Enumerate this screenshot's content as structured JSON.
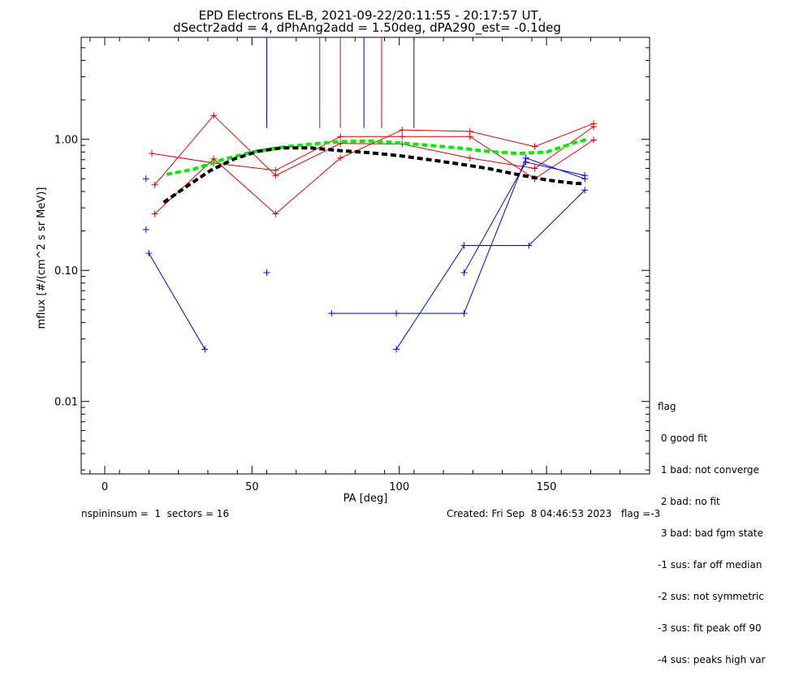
{
  "chart_data": {
    "type": "line",
    "title_line1": "EPD Electrons EL-B, 2021-09-22/20:11:55 - 20:17:57 UT,",
    "title_line2": "dSectr2add = 4, dPhAng2add = 1.50deg, dPA290_est=  -0.1deg",
    "xlabel": "PA [deg]",
    "ylabel": "mflux [#/(cm^2 s sr MeV)]",
    "x_ticks": [
      {
        "value": 0,
        "label": "0"
      },
      {
        "value": 50,
        "label": "50"
      },
      {
        "value": 100,
        "label": "100"
      },
      {
        "value": 150,
        "label": "150"
      }
    ],
    "y_ticks": [
      {
        "value": 0.01,
        "label": "0.01"
      },
      {
        "value": 0.1,
        "label": "0.10"
      },
      {
        "value": 1.0,
        "label": "1.00"
      }
    ],
    "xlim": [
      -8,
      185
    ],
    "ylim": [
      0.0028,
      6.0
    ],
    "yscale": "log",
    "colors": {
      "red": "#e00000",
      "blue": "#0000e0",
      "green": "#00ee00",
      "black": "#000000"
    },
    "red_series": [
      [
        [
          17,
          0.27
        ],
        [
          37,
          0.71
        ],
        [
          58,
          0.27
        ],
        [
          80,
          0.72
        ],
        [
          101,
          1.18
        ],
        [
          124,
          1.15
        ],
        [
          146,
          0.88
        ],
        [
          166,
          1.32
        ]
      ],
      [
        [
          16,
          0.78
        ],
        [
          37,
          0.66
        ],
        [
          58,
          0.58
        ],
        [
          80,
          1.05
        ],
        [
          101,
          1.05
        ],
        [
          124,
          1.05
        ],
        [
          146,
          0.5
        ],
        [
          166,
          0.99
        ]
      ],
      [
        [
          17,
          0.45
        ],
        [
          37,
          1.52
        ],
        [
          58,
          0.53
        ],
        [
          80,
          0.93
        ],
        [
          101,
          0.92
        ],
        [
          124,
          0.72
        ],
        [
          146,
          0.6
        ],
        [
          166,
          1.25
        ]
      ]
    ],
    "blue_series": [
      [
        [
          15,
          0.135
        ],
        [
          34,
          0.025
        ]
      ],
      [
        [
          77,
          0.047
        ],
        [
          99,
          0.047
        ],
        [
          122,
          0.047
        ],
        [
          143,
          0.72
        ],
        [
          163,
          0.5
        ]
      ],
      [
        [
          99,
          0.025
        ],
        [
          122,
          0.155
        ],
        [
          144,
          0.155
        ],
        [
          163,
          0.41
        ]
      ],
      [
        [
          122,
          0.096
        ],
        [
          143,
          0.67
        ],
        [
          163,
          0.53
        ]
      ]
    ],
    "blue_points": [
      [
        14,
        0.5
      ],
      [
        14,
        0.205
      ],
      [
        55,
        0.096
      ]
    ],
    "green_fit": [
      [
        21,
        0.54
      ],
      [
        30,
        0.59
      ],
      [
        40,
        0.7
      ],
      [
        50,
        0.8
      ],
      [
        60,
        0.87
      ],
      [
        70,
        0.92
      ],
      [
        80,
        0.96
      ],
      [
        90,
        0.97
      ],
      [
        100,
        0.94
      ],
      [
        110,
        0.9
      ],
      [
        120,
        0.86
      ],
      [
        130,
        0.81
      ],
      [
        140,
        0.78
      ],
      [
        150,
        0.8
      ],
      [
        160,
        0.95
      ],
      [
        164,
        1.0
      ]
    ],
    "black_fit": [
      [
        20,
        0.33
      ],
      [
        28,
        0.44
      ],
      [
        36,
        0.58
      ],
      [
        44,
        0.71
      ],
      [
        52,
        0.81
      ],
      [
        60,
        0.86
      ],
      [
        70,
        0.86
      ],
      [
        80,
        0.82
      ],
      [
        90,
        0.79
      ],
      [
        100,
        0.75
      ],
      [
        110,
        0.7
      ],
      [
        120,
        0.65
      ],
      [
        130,
        0.6
      ],
      [
        140,
        0.54
      ],
      [
        150,
        0.49
      ],
      [
        160,
        0.46
      ],
      [
        163,
        0.46
      ]
    ],
    "vlines": [
      {
        "x": 55,
        "color": "blue",
        "y_top": 6.0,
        "y_bottom": 1.22
      },
      {
        "x": 73,
        "color": "red",
        "y_top": 6.0,
        "y_bottom": 1.22
      },
      {
        "x": 80,
        "color": "red",
        "y_top": 6.0,
        "y_bottom": 1.22
      },
      {
        "x": 88,
        "color": "blue",
        "y_top": 6.0,
        "y_bottom": 1.22
      },
      {
        "x": 94,
        "color": "red",
        "y_top": 6.0,
        "y_bottom": 1.22
      },
      {
        "x": 105,
        "color": "blue",
        "y_top": 6.0,
        "y_bottom": 1.22
      }
    ]
  },
  "legend": {
    "heading": "flag",
    "items": [
      " 0 good fit",
      " 1 bad: not converge",
      " 2 bad: no fit",
      " 3 bad: bad fgm state",
      "-1 sus: far off median",
      "-2 sus: not symmetric",
      "-3 sus: fit peak off 90",
      "-4 sus: peaks high var"
    ]
  },
  "footer": {
    "left": "nspininsum =  1  sectors = 16",
    "right": "Created: Fri Sep  8 04:46:53 2023   flag =-3"
  }
}
